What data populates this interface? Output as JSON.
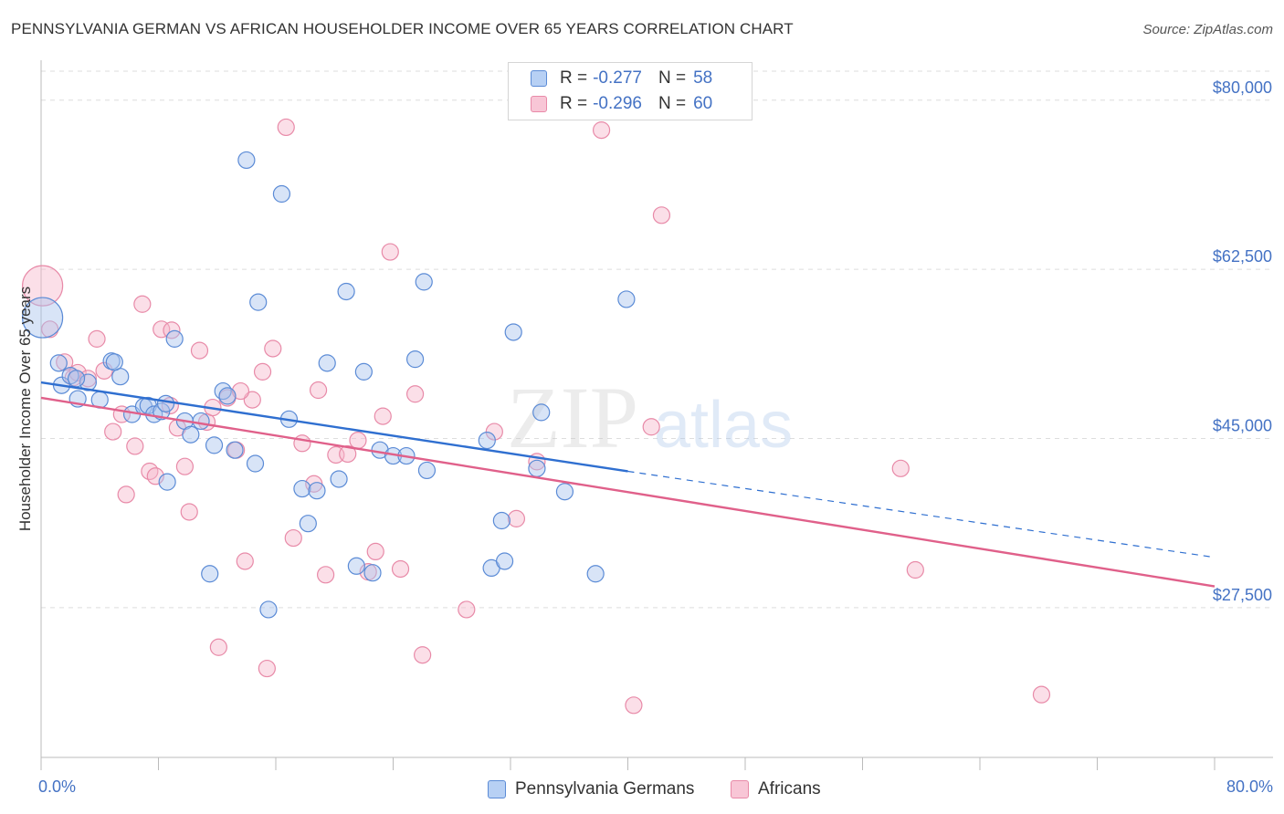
{
  "title": "PENNSYLVANIA GERMAN VS AFRICAN HOUSEHOLDER INCOME OVER 65 YEARS CORRELATION CHART",
  "source": "Source: ZipAtlas.com",
  "watermark": {
    "part1": "ZIP",
    "part2": "atlas"
  },
  "legend": {
    "rows": [
      {
        "r_label": "R = ",
        "r_value": "-0.277",
        "n_label": "N = ",
        "n_value": "58"
      },
      {
        "r_label": "R = ",
        "r_value": "-0.296",
        "n_label": "N = ",
        "n_value": "60"
      }
    ]
  },
  "bottom_legend": [
    "Pennsylvania Germans",
    "Africans"
  ],
  "colors": {
    "blue_fill": "#a9c4ee",
    "blue_stroke": "#5b8bd6",
    "blue_line": "#2f6fd0",
    "pink_fill": "#f6b8cc",
    "pink_stroke": "#e88aa8",
    "pink_line": "#e0608a",
    "axis_text": "#4472c4",
    "grid": "#dddddd"
  },
  "chart_data": {
    "type": "scatter",
    "title": "PENNSYLVANIA GERMAN VS AFRICAN HOUSEHOLDER INCOME OVER 65 YEARS CORRELATION CHART",
    "xlabel": "",
    "ylabel": "Householder Income Over 65 years",
    "xlim": [
      0,
      80
    ],
    "ylim": [
      12000,
      83000
    ],
    "x_tick_labels": [
      "0.0%",
      "80.0%"
    ],
    "y_ticks": [
      27500,
      45000,
      62500,
      80000
    ],
    "y_tick_labels": [
      "$27,500",
      "$45,000",
      "$62,500",
      "$80,000"
    ],
    "grid": true,
    "series": [
      {
        "name": "Pennsylvania Germans",
        "r": -0.277,
        "n": 58,
        "trend": {
          "x": [
            0,
            40
          ],
          "y": [
            50800,
            41600
          ],
          "dashed_to": [
            80,
            32700
          ]
        },
        "points": [
          {
            "x": 0.1,
            "y": 57500,
            "big": true
          },
          {
            "x": 1.2,
            "y": 52800
          },
          {
            "x": 1.4,
            "y": 50500
          },
          {
            "x": 2.0,
            "y": 51500
          },
          {
            "x": 2.5,
            "y": 49100
          },
          {
            "x": 3.2,
            "y": 50800
          },
          {
            "x": 4.0,
            "y": 49000
          },
          {
            "x": 4.8,
            "y": 53000
          },
          {
            "x": 5.4,
            "y": 51400
          },
          {
            "x": 6.2,
            "y": 47500
          },
          {
            "x": 7.0,
            "y": 48300
          },
          {
            "x": 7.3,
            "y": 48400
          },
          {
            "x": 7.7,
            "y": 47500
          },
          {
            "x": 8.2,
            "y": 47800
          },
          {
            "x": 8.5,
            "y": 48600
          },
          {
            "x": 8.6,
            "y": 40500
          },
          {
            "x": 9.1,
            "y": 55300
          },
          {
            "x": 9.8,
            "y": 46800
          },
          {
            "x": 10.2,
            "y": 45400
          },
          {
            "x": 10.9,
            "y": 46800
          },
          {
            "x": 11.5,
            "y": 31000
          },
          {
            "x": 11.8,
            "y": 44300
          },
          {
            "x": 12.4,
            "y": 49900
          },
          {
            "x": 12.7,
            "y": 49400
          },
          {
            "x": 13.2,
            "y": 43800
          },
          {
            "x": 14.0,
            "y": 73800
          },
          {
            "x": 14.6,
            "y": 42400
          },
          {
            "x": 14.8,
            "y": 59100
          },
          {
            "x": 15.5,
            "y": 27300
          },
          {
            "x": 16.4,
            "y": 70300
          },
          {
            "x": 16.9,
            "y": 47000
          },
          {
            "x": 17.8,
            "y": 39800
          },
          {
            "x": 18.2,
            "y": 36200
          },
          {
            "x": 18.8,
            "y": 39600
          },
          {
            "x": 19.5,
            "y": 52800
          },
          {
            "x": 20.3,
            "y": 40800
          },
          {
            "x": 20.8,
            "y": 60200
          },
          {
            "x": 21.5,
            "y": 31800
          },
          {
            "x": 22.0,
            "y": 51900
          },
          {
            "x": 22.6,
            "y": 31100
          },
          {
            "x": 23.1,
            "y": 43800
          },
          {
            "x": 24.0,
            "y": 43200
          },
          {
            "x": 24.9,
            "y": 43200
          },
          {
            "x": 25.5,
            "y": 53200
          },
          {
            "x": 26.1,
            "y": 61200
          },
          {
            "x": 26.3,
            "y": 41700
          },
          {
            "x": 30.4,
            "y": 44800
          },
          {
            "x": 30.7,
            "y": 31600
          },
          {
            "x": 31.4,
            "y": 36500
          },
          {
            "x": 31.6,
            "y": 32300
          },
          {
            "x": 32.2,
            "y": 56000
          },
          {
            "x": 33.8,
            "y": 41900
          },
          {
            "x": 34.1,
            "y": 47700
          },
          {
            "x": 35.7,
            "y": 39500
          },
          {
            "x": 37.8,
            "y": 31000
          },
          {
            "x": 39.9,
            "y": 59400
          },
          {
            "x": 2.4,
            "y": 51200
          },
          {
            "x": 5.0,
            "y": 52900
          }
        ]
      },
      {
        "name": "Africans",
        "r": -0.296,
        "n": 60,
        "trend": {
          "x": [
            0,
            80
          ],
          "y": [
            49200,
            29700
          ]
        },
        "points": [
          {
            "x": 0.1,
            "y": 60800,
            "big": true
          },
          {
            "x": 0.6,
            "y": 56300
          },
          {
            "x": 1.6,
            "y": 52900
          },
          {
            "x": 2.2,
            "y": 51300
          },
          {
            "x": 2.5,
            "y": 51800
          },
          {
            "x": 3.2,
            "y": 51200
          },
          {
            "x": 3.8,
            "y": 55300
          },
          {
            "x": 4.3,
            "y": 52000
          },
          {
            "x": 4.9,
            "y": 45700
          },
          {
            "x": 5.5,
            "y": 47500
          },
          {
            "x": 5.8,
            "y": 39200
          },
          {
            "x": 6.4,
            "y": 44200
          },
          {
            "x": 6.9,
            "y": 58900
          },
          {
            "x": 7.4,
            "y": 41600
          },
          {
            "x": 7.8,
            "y": 41100
          },
          {
            "x": 8.2,
            "y": 56300
          },
          {
            "x": 8.8,
            "y": 48400
          },
          {
            "x": 9.3,
            "y": 46100
          },
          {
            "x": 9.8,
            "y": 42100
          },
          {
            "x": 10.1,
            "y": 37400
          },
          {
            "x": 10.8,
            "y": 54100
          },
          {
            "x": 11.3,
            "y": 46700
          },
          {
            "x": 11.7,
            "y": 48200
          },
          {
            "x": 12.1,
            "y": 23400
          },
          {
            "x": 12.7,
            "y": 49200
          },
          {
            "x": 13.3,
            "y": 43800
          },
          {
            "x": 13.9,
            "y": 32300
          },
          {
            "x": 14.4,
            "y": 49000
          },
          {
            "x": 15.1,
            "y": 51900
          },
          {
            "x": 15.4,
            "y": 21200
          },
          {
            "x": 15.8,
            "y": 54300
          },
          {
            "x": 17.2,
            "y": 34700
          },
          {
            "x": 17.8,
            "y": 44500
          },
          {
            "x": 18.6,
            "y": 40300
          },
          {
            "x": 18.9,
            "y": 50000
          },
          {
            "x": 19.4,
            "y": 30900
          },
          {
            "x": 20.1,
            "y": 43300
          },
          {
            "x": 20.9,
            "y": 43400
          },
          {
            "x": 21.6,
            "y": 44800
          },
          {
            "x": 22.3,
            "y": 31200
          },
          {
            "x": 22.8,
            "y": 33300
          },
          {
            "x": 23.3,
            "y": 47300
          },
          {
            "x": 23.8,
            "y": 64300
          },
          {
            "x": 24.5,
            "y": 31500
          },
          {
            "x": 25.5,
            "y": 49600
          },
          {
            "x": 26.0,
            "y": 22600
          },
          {
            "x": 29.0,
            "y": 27300
          },
          {
            "x": 30.9,
            "y": 45700
          },
          {
            "x": 32.4,
            "y": 36700
          },
          {
            "x": 33.8,
            "y": 42600
          },
          {
            "x": 38.2,
            "y": 76900
          },
          {
            "x": 40.4,
            "y": 17400
          },
          {
            "x": 41.6,
            "y": 46200
          },
          {
            "x": 42.3,
            "y": 68100
          },
          {
            "x": 58.6,
            "y": 41900
          },
          {
            "x": 59.6,
            "y": 31400
          },
          {
            "x": 68.2,
            "y": 18500
          },
          {
            "x": 16.7,
            "y": 77200
          },
          {
            "x": 13.6,
            "y": 49900
          },
          {
            "x": 8.9,
            "y": 56200
          }
        ]
      }
    ]
  }
}
